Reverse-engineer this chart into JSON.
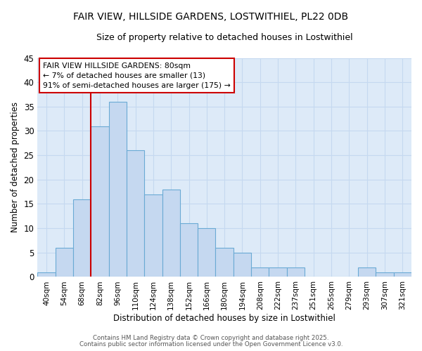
{
  "title_line1": "FAIR VIEW, HILLSIDE GARDENS, LOSTWITHIEL, PL22 0DB",
  "title_line2": "Size of property relative to detached houses in Lostwithiel",
  "xlabel": "Distribution of detached houses by size in Lostwithiel",
  "ylabel": "Number of detached properties",
  "bar_values": [
    1,
    6,
    16,
    31,
    36,
    26,
    17,
    18,
    11,
    10,
    6,
    5,
    2,
    2,
    2,
    0,
    0,
    0,
    2,
    1,
    1
  ],
  "bin_labels": [
    "40sqm",
    "54sqm",
    "68sqm",
    "82sqm",
    "96sqm",
    "110sqm",
    "124sqm",
    "138sqm",
    "152sqm",
    "166sqm",
    "180sqm",
    "194sqm",
    "208sqm",
    "222sqm",
    "237sqm",
    "251sqm",
    "265sqm",
    "279sqm",
    "293sqm",
    "307sqm",
    "321sqm"
  ],
  "bar_color": "#c5d8f0",
  "bar_edge_color": "#6aaad4",
  "grid_color": "#c5d8f0",
  "plot_bg_color": "#ddeaf8",
  "figure_bg_color": "#ffffff",
  "vline_x_index": 3,
  "vline_color": "#cc0000",
  "annotation_title": "FAIR VIEW HILLSIDE GARDENS: 80sqm",
  "annotation_line2": "← 7% of detached houses are smaller (13)",
  "annotation_line3": "91% of semi-detached houses are larger (175) →",
  "annotation_box_color": "#ffffff",
  "annotation_box_edge": "#cc0000",
  "ylim": [
    0,
    45
  ],
  "yticks": [
    0,
    5,
    10,
    15,
    20,
    25,
    30,
    35,
    40,
    45
  ],
  "footer_line1": "Contains HM Land Registry data © Crown copyright and database right 2025.",
  "footer_line2": "Contains public sector information licensed under the Open Government Licence v3.0."
}
